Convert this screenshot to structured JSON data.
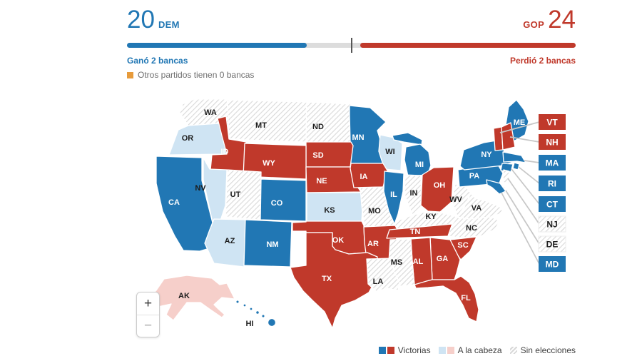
{
  "header": {
    "dem_count": "20",
    "dem_party": "DEM",
    "gop_party": "GOP",
    "gop_count": "24",
    "dem_status": "Ganó 2 bancas",
    "gop_status": "Perdió 2 bancas",
    "others_note": "Otros partidos tienen 0 bancas",
    "bar": {
      "dem_pct": 40,
      "gop_pct": 48
    }
  },
  "colors": {
    "dem": "#2177b4",
    "gop": "#c0392b",
    "lead_dem": "#cfe4f3",
    "lead_gop": "#f6cfca",
    "hatch_line": "#d8d8d8",
    "others": "#e79b3b",
    "track": "#dcdcdc",
    "tick": "#555555"
  },
  "map": {
    "states": [
      {
        "code": "WA",
        "status": "no_election"
      },
      {
        "code": "OR",
        "status": "lead_dem"
      },
      {
        "code": "CA",
        "status": "win_dem"
      },
      {
        "code": "NV",
        "status": "lead_dem"
      },
      {
        "code": "ID",
        "status": "win_gop"
      },
      {
        "code": "MT",
        "status": "no_election"
      },
      {
        "code": "WY",
        "status": "win_gop"
      },
      {
        "code": "UT",
        "status": "no_election"
      },
      {
        "code": "CO",
        "status": "win_dem"
      },
      {
        "code": "AZ",
        "status": "lead_dem"
      },
      {
        "code": "NM",
        "status": "win_dem"
      },
      {
        "code": "ND",
        "status": "no_election"
      },
      {
        "code": "SD",
        "status": "win_gop"
      },
      {
        "code": "NE",
        "status": "win_gop"
      },
      {
        "code": "KS",
        "status": "lead_dem"
      },
      {
        "code": "OK",
        "status": "win_gop"
      },
      {
        "code": "TX",
        "status": "win_gop"
      },
      {
        "code": "MN",
        "status": "win_dem"
      },
      {
        "code": "IA",
        "status": "win_gop"
      },
      {
        "code": "MO",
        "status": "no_election"
      },
      {
        "code": "AR",
        "status": "win_gop"
      },
      {
        "code": "LA",
        "status": "no_election"
      },
      {
        "code": "WI",
        "status": "lead_dem"
      },
      {
        "code": "IL",
        "status": "win_dem"
      },
      {
        "code": "MI",
        "status": "win_dem"
      },
      {
        "code": "IN",
        "status": "no_election"
      },
      {
        "code": "OH",
        "status": "win_gop"
      },
      {
        "code": "KY",
        "status": "no_election"
      },
      {
        "code": "TN",
        "status": "win_gop"
      },
      {
        "code": "MS",
        "status": "no_election"
      },
      {
        "code": "AL",
        "status": "win_gop"
      },
      {
        "code": "GA",
        "status": "win_gop"
      },
      {
        "code": "SC",
        "status": "win_gop"
      },
      {
        "code": "NC",
        "status": "no_election"
      },
      {
        "code": "VA",
        "status": "no_election"
      },
      {
        "code": "WV",
        "status": "no_election"
      },
      {
        "code": "FL",
        "status": "win_gop"
      },
      {
        "code": "PA",
        "status": "win_dem"
      },
      {
        "code": "NY",
        "status": "win_dem"
      },
      {
        "code": "ME",
        "status": "win_dem"
      },
      {
        "code": "VT",
        "status": "win_gop"
      },
      {
        "code": "NH",
        "status": "win_gop"
      },
      {
        "code": "MA",
        "status": "win_dem"
      },
      {
        "code": "RI",
        "status": "win_dem"
      },
      {
        "code": "CT",
        "status": "win_dem"
      },
      {
        "code": "NJ",
        "status": "no_election"
      },
      {
        "code": "DE",
        "status": "no_election"
      },
      {
        "code": "MD",
        "status": "win_dem"
      },
      {
        "code": "AK",
        "status": "lead_gop"
      },
      {
        "code": "HI",
        "status": "win_dem"
      }
    ],
    "callouts": [
      "VT",
      "NH",
      "MA",
      "RI",
      "CT",
      "NJ",
      "DE",
      "MD"
    ]
  },
  "legend": {
    "victorias": "Victorias",
    "a_la_cabeza": "A la cabeza",
    "sin_elecciones": "Sin elecciones"
  },
  "zoom_controls": {
    "zoom_in": "+",
    "zoom_out": "−"
  }
}
